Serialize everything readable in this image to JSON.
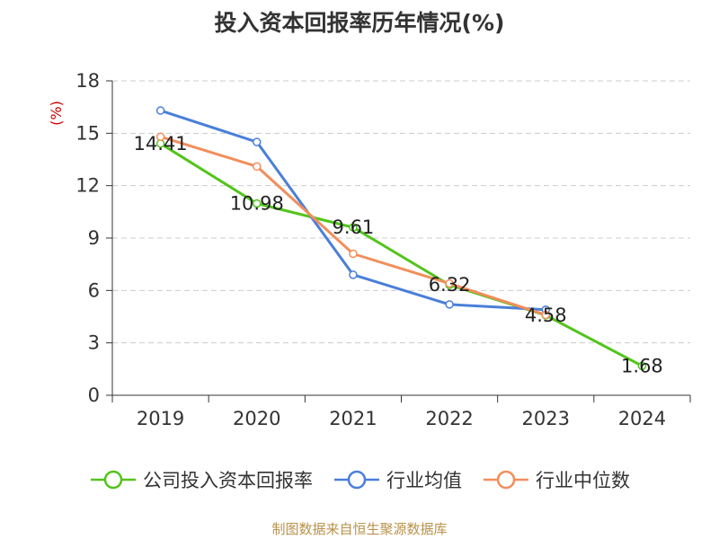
{
  "chart_data": {
    "type": "line",
    "title": "投入资本回报率历年情况(%)",
    "ylabel": "(%)",
    "xlabel": "",
    "categories": [
      "2019",
      "2020",
      "2021",
      "2022",
      "2023",
      "2024"
    ],
    "ylim": [
      0,
      18
    ],
    "yticks": [
      0,
      3,
      6,
      9,
      12,
      15,
      18
    ],
    "grid": true,
    "legend_position": "bottom",
    "series": [
      {
        "name": "公司投入资本回报率",
        "color": "#52c41a",
        "values": [
          14.41,
          10.98,
          9.61,
          6.32,
          4.58,
          1.68
        ],
        "labels": [
          "14.41",
          "10.98",
          "9.61",
          "6.32",
          "4.58",
          "1.68"
        ]
      },
      {
        "name": "行业均值",
        "color": "#4a7fd9",
        "values": [
          16.3,
          14.5,
          6.9,
          5.2,
          4.9,
          null
        ]
      },
      {
        "name": "行业中位数",
        "color": "#f28e5b",
        "values": [
          14.8,
          13.1,
          8.1,
          6.4,
          4.6,
          null
        ]
      }
    ]
  },
  "source_text": "制图数据来自恒生聚源数据库",
  "colors": {
    "ylabel": "#cc0000",
    "grid": "#cccccc",
    "axis": "#333333",
    "source": "#b8924a"
  }
}
